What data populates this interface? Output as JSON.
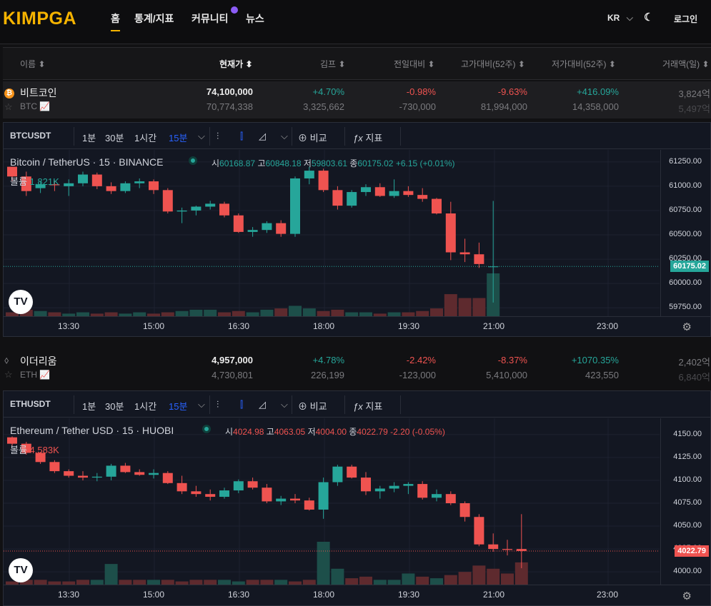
{
  "nav": {
    "logo": "KIMPGA",
    "items": [
      "홈",
      "통계/지표",
      "커뮤니티",
      "뉴스"
    ],
    "lang": "KR",
    "login": "로그인"
  },
  "table_header": {
    "name": "이름",
    "price": "현재가",
    "kimp": "김프",
    "prev": "전일대비",
    "high52": "고가대비(52주)",
    "low52": "저가대비(52주)",
    "volume": "거래액(일)"
  },
  "coins": [
    {
      "name": "비트코인",
      "symbol": "BTC",
      "price": "74,100,000",
      "price_sub": "70,774,338",
      "kimp": "+4.70%",
      "kimp_sub": "3,325,662",
      "prev": "-0.98%",
      "prev_sub": "-730,000",
      "high52": "-9.63%",
      "high52_sub": "81,994,000",
      "low52": "+416.09%",
      "low52_sub": "14,358,000",
      "vol": "3,824억",
      "vol_sub": "5,497억"
    },
    {
      "name": "이더리움",
      "symbol": "ETH",
      "price": "4,957,000",
      "price_sub": "4,730,801",
      "kimp": "+4.78%",
      "kimp_sub": "226,199",
      "prev": "-2.42%",
      "prev_sub": "-123,000",
      "high52": "-8.37%",
      "high52_sub": "5,410,000",
      "low52": "+1070.35%",
      "low52_sub": "423,550",
      "vol": "2,402억",
      "vol_sub": "6,840억"
    }
  ],
  "charts": [
    {
      "toolbar": {
        "symbol": "BTCUSDT",
        "i1": "1분",
        "i2": "30분",
        "i3": "1시간",
        "i4": "15분",
        "compare": "비교",
        "indicators": "지표"
      },
      "legend": "Bitcoin / TetherUS · 15 · BINANCE",
      "ohlc": {
        "o_label": "시",
        "o": "60168.87",
        "h_label": "고",
        "h": "60848.18",
        "l_label": "저",
        "l": "59803.61",
        "c_label": "종",
        "c": "60175.02",
        "chg": "+6.15 (+0.01%)"
      },
      "volume_label": "볼륨",
      "volume": "1.821K",
      "y_ticks": [
        "61250.00",
        "61000.00",
        "60750.00",
        "60500.00",
        "60250.00",
        "60000.00",
        "59750.00"
      ],
      "price_tag": "60175.02",
      "x_ticks": [
        "13:30",
        "15:00",
        "16:30",
        "18:00",
        "19:30",
        "21:00",
        "23:00"
      ],
      "color": "#26a69a"
    },
    {
      "toolbar": {
        "symbol": "ETHUSDT",
        "i1": "1분",
        "i2": "30분",
        "i3": "1시간",
        "i4": "15분",
        "compare": "비교",
        "indicators": "지표"
      },
      "legend": "Ethereum / Tether USD · 15 · HUOBI",
      "ohlc": {
        "o_label": "시",
        "o": "4024.98",
        "h_label": "고",
        "h": "4063.05",
        "l_label": "저",
        "l": "4004.00",
        "c_label": "종",
        "c": "4022.79",
        "chg": "-2.20 (-0.05%)"
      },
      "volume_label": "볼륨",
      "volume": "4.583K",
      "y_ticks": [
        "4150.00",
        "4125.00",
        "4100.00",
        "4075.00",
        "4050.00",
        "4025.00",
        "4000.00"
      ],
      "price_tag": "4022.79",
      "x_ticks": [
        "13:30",
        "15:00",
        "16:30",
        "18:00",
        "19:30",
        "21:00",
        "23:00"
      ],
      "color": "#ef5350"
    }
  ],
  "chart_data": [
    {
      "type": "candlestick",
      "title": "Bitcoin / TetherUS · 15 · BINANCE",
      "y_range": [
        59700,
        61300
      ],
      "candles": [
        [
          61200,
          61200,
          61050,
          61100
        ],
        [
          61100,
          61150,
          60900,
          60950
        ],
        [
          60980,
          61050,
          60930,
          61020
        ],
        [
          61020,
          61060,
          60950,
          61010
        ],
        [
          61000,
          61070,
          60900,
          61030
        ],
        [
          61030,
          61150,
          61000,
          61120
        ],
        [
          61120,
          61140,
          60970,
          61000
        ],
        [
          61000,
          61040,
          60920,
          60950
        ],
        [
          60950,
          61050,
          60930,
          61030
        ],
        [
          61030,
          61080,
          60980,
          61050
        ],
        [
          61050,
          61070,
          60920,
          60960
        ],
        [
          60960,
          60980,
          60720,
          60740
        ],
        [
          60740,
          60780,
          60620,
          60750
        ],
        [
          60750,
          60800,
          60700,
          60790
        ],
        [
          60790,
          60850,
          60760,
          60820
        ],
        [
          60820,
          60840,
          60680,
          60700
        ],
        [
          60700,
          60720,
          60520,
          60530
        ],
        [
          60530,
          60580,
          60480,
          60550
        ],
        [
          60550,
          60640,
          60520,
          60620
        ],
        [
          60620,
          60650,
          60480,
          60510
        ],
        [
          60510,
          61100,
          60480,
          61080
        ],
        [
          61080,
          61200,
          61020,
          61160
        ],
        [
          61160,
          61180,
          60940,
          60960
        ],
        [
          60960,
          61000,
          60760,
          60800
        ],
        [
          60800,
          60960,
          60780,
          60940
        ],
        [
          60940,
          61020,
          60900,
          60990
        ],
        [
          60990,
          61030,
          60890,
          60900
        ],
        [
          60900,
          61070,
          60880,
          60950
        ],
        [
          60950,
          61000,
          60890,
          60910
        ],
        [
          60910,
          60980,
          60840,
          60870
        ],
        [
          60870,
          60880,
          60710,
          60720
        ],
        [
          60720,
          60840,
          60240,
          60320
        ],
        [
          60320,
          60460,
          60220,
          60300
        ],
        [
          60300,
          60420,
          60160,
          60200
        ],
        [
          60168.87,
          60848.18,
          59803.61,
          60175.02
        ]
      ],
      "volume": [
        0.3,
        0.5,
        0.4,
        0.3,
        0.2,
        0.3,
        0.2,
        0.3,
        0.2,
        0.3,
        0.2,
        0.3,
        0.4,
        0.5,
        0.5,
        0.3,
        0.4,
        0.3,
        0.5,
        0.6,
        0.8,
        0.6,
        0.4,
        0.5,
        0.3,
        0.3,
        0.2,
        0.3,
        0.3,
        0.4,
        0.6,
        1.7,
        1.4,
        1.4,
        3.3
      ]
    },
    {
      "type": "candlestick",
      "title": "Ethereum / Tether USD · 15 · HUOBI",
      "y_range": [
        3990,
        4160
      ],
      "candles": [
        [
          4147,
          4148,
          4138,
          4140
        ],
        [
          4140,
          4142,
          4128,
          4130
        ],
        [
          4130,
          4131,
          4118,
          4120
        ],
        [
          4120,
          4122,
          4108,
          4110
        ],
        [
          4110,
          4112,
          4103,
          4105
        ],
        [
          4105,
          4110,
          4100,
          4103
        ],
        [
          4103,
          4108,
          4099,
          4104
        ],
        [
          4104,
          4118,
          4100,
          4116
        ],
        [
          4116,
          4119,
          4108,
          4109
        ],
        [
          4109,
          4112,
          4105,
          4106
        ],
        [
          4106,
          4112,
          4102,
          4108
        ],
        [
          4108,
          4110,
          4096,
          4097
        ],
        [
          4097,
          4105,
          4085,
          4088
        ],
        [
          4088,
          4094,
          4082,
          4085
        ],
        [
          4085,
          4090,
          4078,
          4082
        ],
        [
          4082,
          4092,
          4080,
          4089
        ],
        [
          4089,
          4101,
          4086,
          4099
        ],
        [
          4099,
          4103,
          4090,
          4092
        ],
        [
          4092,
          4096,
          4075,
          4077
        ],
        [
          4077,
          4083,
          4073,
          4080
        ],
        [
          4080,
          4085,
          4075,
          4078
        ],
        [
          4078,
          4081,
          4067,
          4068
        ],
        [
          4068,
          4103,
          4058,
          4098
        ],
        [
          4098,
          4117,
          4094,
          4115
        ],
        [
          4115,
          4117,
          4102,
          4103
        ],
        [
          4103,
          4109,
          4084,
          4088
        ],
        [
          4088,
          4094,
          4080,
          4091
        ],
        [
          4091,
          4098,
          4087,
          4094
        ],
        [
          4094,
          4098,
          4085,
          4096
        ],
        [
          4096,
          4099,
          4079,
          4081
        ],
        [
          4081,
          4090,
          4077,
          4085
        ],
        [
          4085,
          4088,
          4073,
          4075
        ],
        [
          4075,
          4077,
          4055,
          4060
        ],
        [
          4060,
          4063,
          4028,
          4030
        ],
        [
          4030,
          4042,
          4022,
          4025
        ],
        [
          4025,
          4035,
          4018,
          4024
        ],
        [
          4024.98,
          4063.05,
          4004.0,
          4022.79
        ]
      ],
      "volume": [
        0.2,
        0.3,
        0.3,
        0.2,
        0.2,
        0.3,
        0.3,
        1.3,
        0.3,
        0.3,
        0.3,
        0.3,
        0.2,
        0.3,
        0.3,
        0.3,
        0.2,
        0.3,
        0.3,
        0.3,
        0.2,
        0.3,
        2.7,
        1.0,
        0.4,
        0.5,
        0.3,
        0.3,
        0.7,
        0.5,
        0.4,
        0.6,
        0.8,
        1.2,
        1.0,
        0.7,
        1.4
      ]
    }
  ]
}
